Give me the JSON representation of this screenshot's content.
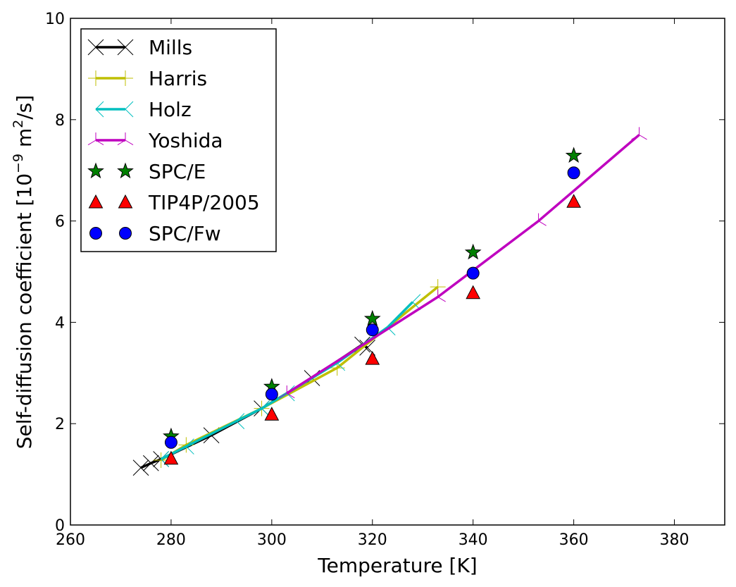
{
  "chart_data": {
    "type": "line",
    "xlabel": "Temperature [K]",
    "ylabel": "Self-diffusion coefficient [10",
    "ylabel_sup1": "−9",
    "ylabel_mid": " m",
    "ylabel_sup2": "2",
    "ylabel_tail": "/s]",
    "xlim": [
      260,
      390
    ],
    "ylim": [
      0,
      10
    ],
    "xticks": [
      "260",
      "280",
      "300",
      "320",
      "340",
      "360",
      "380"
    ],
    "yticks": [
      "0",
      "2",
      "4",
      "6",
      "8",
      "10"
    ],
    "grid": false,
    "legend_position": "top-left",
    "series": [
      {
        "name": "Mills",
        "kind": "line",
        "color": "#000000",
        "marker": "x",
        "x": [
          274,
          276,
          278,
          288,
          298,
          308,
          318,
          319
        ],
        "y": [
          1.13,
          1.22,
          1.3,
          1.77,
          2.3,
          2.9,
          3.56,
          3.5
        ]
      },
      {
        "name": "Harris",
        "kind": "line",
        "color": "#bfbf00",
        "marker": "|",
        "x": [
          278,
          283,
          298,
          313,
          333
        ],
        "y": [
          1.28,
          1.58,
          2.3,
          3.1,
          4.7
        ]
      },
      {
        "name": "Holz",
        "kind": "line",
        "color": "#00bfbf",
        "marker": "<",
        "x": [
          278,
          283,
          293,
          298,
          303,
          313,
          323,
          328
        ],
        "y": [
          1.3,
          1.55,
          2.05,
          2.3,
          2.6,
          3.2,
          3.9,
          4.4
        ]
      },
      {
        "name": "Yoshida",
        "kind": "line",
        "color": "#bf00bf",
        "marker": "1",
        "x": [
          303,
          333,
          353,
          373
        ],
        "y": [
          2.6,
          4.5,
          6.0,
          7.7
        ]
      },
      {
        "name": "SPC/E",
        "kind": "scatter",
        "color": "#008000",
        "marker": "star",
        "x": [
          280,
          300,
          320,
          340,
          360
        ],
        "y": [
          1.75,
          2.73,
          4.07,
          5.38,
          7.29
        ]
      },
      {
        "name": "TIP4P/2005",
        "kind": "scatter",
        "color": "#ff0000",
        "marker": "triangle",
        "x": [
          280,
          300,
          320,
          340,
          360
        ],
        "y": [
          1.31,
          2.18,
          3.28,
          4.58,
          6.38
        ]
      },
      {
        "name": "SPC/Fw",
        "kind": "scatter",
        "color": "#0000ff",
        "marker": "circle",
        "x": [
          280,
          300,
          320,
          340,
          360
        ],
        "y": [
          1.63,
          2.58,
          3.85,
          4.97,
          6.95
        ]
      }
    ]
  }
}
